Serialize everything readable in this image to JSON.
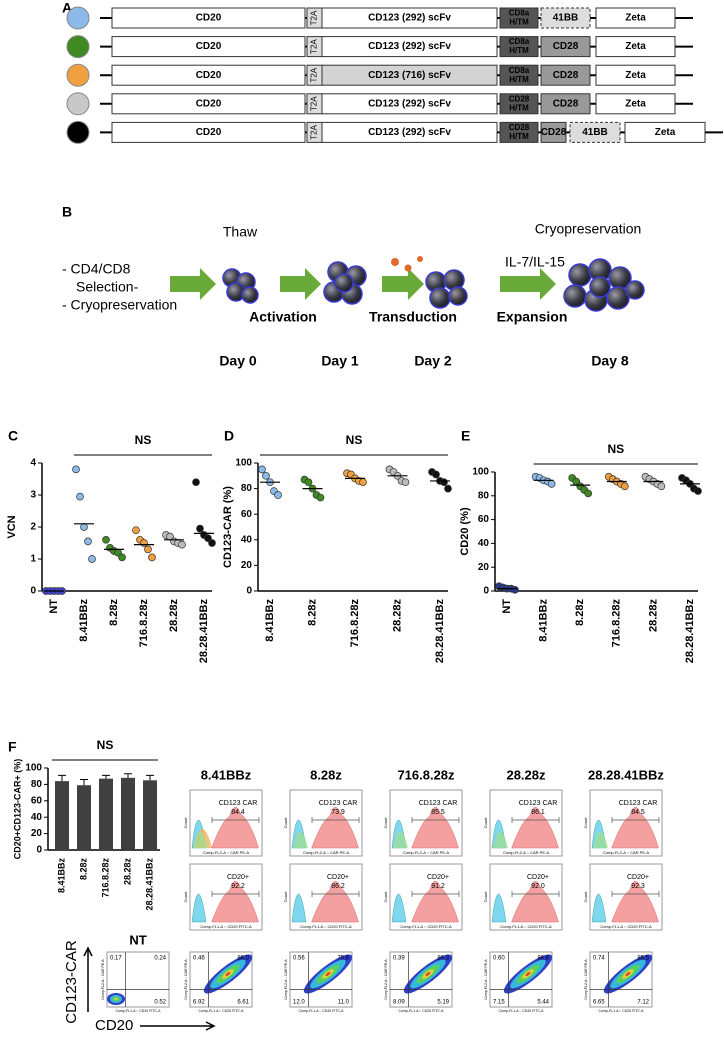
{
  "panel_a": {
    "label": "A",
    "rows": [
      {
        "color": "#8db9e8",
        "segments": [
          {
            "text": [
              "CD20"
            ],
            "fill": "#ffffff"
          },
          {
            "text": [
              "T2A"
            ],
            "fill": "#dddddd"
          },
          {
            "text": [
              "CD123 (292) scFv"
            ],
            "fill": "#ffffff"
          },
          {
            "text": [
              "CD8a",
              "H/TM"
            ],
            "fill": "#555555"
          },
          {
            "text": [
              "41BB"
            ],
            "fill": "#dddddd",
            "dashed": true
          },
          {
            "text": [
              "Zeta"
            ],
            "fill": "#ffffff"
          }
        ]
      },
      {
        "color": "#3f8a22",
        "segments": [
          {
            "text": [
              "CD20"
            ],
            "fill": "#ffffff"
          },
          {
            "text": [
              "T2A"
            ],
            "fill": "#dddddd"
          },
          {
            "text": [
              "CD123 (292) scFv"
            ],
            "fill": "#ffffff"
          },
          {
            "text": [
              "CD8a",
              "H/TM"
            ],
            "fill": "#555555"
          },
          {
            "text": [
              "CD28"
            ],
            "fill": "#999999"
          },
          {
            "text": [
              "Zeta"
            ],
            "fill": "#ffffff"
          }
        ]
      },
      {
        "color": "#f0a040",
        "segments": [
          {
            "text": [
              "CD20"
            ],
            "fill": "#ffffff"
          },
          {
            "text": [
              "T2A"
            ],
            "fill": "#dddddd"
          },
          {
            "text": [
              "CD123 (716) scFv"
            ],
            "fill": "#d3d3d3"
          },
          {
            "text": [
              "CD8a",
              "H/TM"
            ],
            "fill": "#555555"
          },
          {
            "text": [
              "CD28"
            ],
            "fill": "#999999"
          },
          {
            "text": [
              "Zeta"
            ],
            "fill": "#ffffff"
          }
        ]
      },
      {
        "color": "#c8c8c8",
        "segments": [
          {
            "text": [
              "CD20"
            ],
            "fill": "#ffffff"
          },
          {
            "text": [
              "T2A"
            ],
            "fill": "#dddddd"
          },
          {
            "text": [
              "CD123 (292) scFv"
            ],
            "fill": "#ffffff"
          },
          {
            "text": [
              "CD28",
              "H/TM"
            ],
            "fill": "#555555"
          },
          {
            "text": [
              "CD28"
            ],
            "fill": "#999999"
          },
          {
            "text": [
              "Zeta"
            ],
            "fill": "#ffffff"
          }
        ]
      },
      {
        "color": "#000000",
        "segments": [
          {
            "text": [
              "CD20"
            ],
            "fill": "#ffffff"
          },
          {
            "text": [
              "T2A"
            ],
            "fill": "#dddddd"
          },
          {
            "text": [
              "CD123 (292) scFv"
            ],
            "fill": "#ffffff"
          },
          {
            "text": [
              "CD28",
              "H/TM"
            ],
            "fill": "#555555"
          },
          {
            "text": [
              "CD28"
            ],
            "fill": "#999999"
          },
          {
            "text": [
              "41BB"
            ],
            "fill": "#dddddd",
            "dashed": true
          },
          {
            "text": [
              "Zeta"
            ],
            "fill": "#ffffff"
          }
        ]
      }
    ]
  },
  "panel_b": {
    "label": "B",
    "start": [
      "- CD4/CD8",
      "Selection-",
      "- Cryopreservation"
    ],
    "thaw": "Thaw",
    "activation": "Activation",
    "transduction": "Transduction",
    "cytokines": "IL-7/IL-15",
    "expansion": "Expansion",
    "cryo": "Cryopreservation",
    "days": [
      "Day 0",
      "Day 1",
      "Day 2",
      "Day 8"
    ]
  },
  "chart_data": [
    {
      "type": "dot",
      "label": "C",
      "y_label": "VCN",
      "annotation": "NS",
      "categories": [
        "NT",
        "8.41BBz",
        "8.28z",
        "716.8.28z",
        "28.28z",
        "28.28.41BBz"
      ],
      "colors": [
        "#4444dd",
        "#8db9e8",
        "#3f8a22",
        "#f0a040",
        "#bbbbbb",
        "#111111"
      ],
      "values": [
        [
          0,
          0,
          0,
          0,
          0
        ],
        [
          3.8,
          2.95,
          2.0,
          1.55,
          1.0
        ],
        [
          1.6,
          1.35,
          1.25,
          1.2,
          1.05
        ],
        [
          1.9,
          1.6,
          1.5,
          1.3,
          1.05
        ],
        [
          1.75,
          1.7,
          1.55,
          1.5,
          1.45
        ],
        [
          3.4,
          1.95,
          1.75,
          1.65,
          1.5
        ]
      ],
      "means": [
        0,
        2.1,
        1.3,
        1.45,
        1.6,
        1.8
      ],
      "ylim": [
        0,
        4
      ],
      "yticks": [
        0,
        1,
        2,
        3,
        4
      ]
    },
    {
      "type": "dot",
      "label": "D",
      "y_label": "CD123-CAR (%)",
      "annotation": "NS",
      "categories": [
        "8.41BBz",
        "8.28z",
        "716.8.28z",
        "28.28z",
        "28.28.41BBz"
      ],
      "colors": [
        "#8db9e8",
        "#3f8a22",
        "#f0a040",
        "#bbbbbb",
        "#111111"
      ],
      "values": [
        [
          95,
          90,
          85,
          78,
          75
        ],
        [
          87,
          85,
          80,
          75,
          73
        ],
        [
          92,
          91,
          88,
          86,
          85
        ],
        [
          95,
          93,
          90,
          86,
          85
        ],
        [
          93,
          91,
          86,
          85,
          80
        ]
      ],
      "means": [
        85,
        80,
        88,
        90,
        86
      ],
      "ylim": [
        0,
        100
      ],
      "yticks": [
        0,
        20,
        40,
        60,
        80,
        100
      ]
    },
    {
      "type": "dot",
      "label": "E",
      "y_label": "CD20 (%)",
      "annotation": "NS",
      "categories": [
        "NT",
        "8.41BBz",
        "8.28z",
        "716.8.28z",
        "28.28z",
        "28.28.41BBz"
      ],
      "colors": [
        "#2a3a8a",
        "#8db9e8",
        "#3f8a22",
        "#f0a040",
        "#bbbbbb",
        "#111111"
      ],
      "values": [
        [
          4,
          3,
          2,
          2,
          1
        ],
        [
          96,
          95,
          93,
          92,
          90
        ],
        [
          95,
          92,
          88,
          85,
          82
        ],
        [
          96,
          94,
          92,
          90,
          88
        ],
        [
          96,
          94,
          92,
          90,
          88
        ],
        [
          95,
          93,
          90,
          86,
          84
        ]
      ],
      "means": [
        2,
        93,
        89,
        92,
        92,
        90
      ],
      "ylim": [
        0,
        100
      ],
      "yticks": [
        0,
        20,
        40,
        60,
        80,
        100
      ]
    },
    {
      "type": "bar",
      "label": "F",
      "y_label": "CD20+CD123-CAR+ (%)",
      "annotation": "NS",
      "categories": [
        "8.41BBz",
        "8.28z",
        "716.8.28z",
        "28.28z",
        "28.28.41BBz"
      ],
      "values": [
        84,
        79,
        87,
        88,
        85
      ],
      "errors": [
        7,
        7,
        4,
        5,
        6
      ],
      "color": "#404040",
      "ylim": [
        0,
        100
      ],
      "yticks": [
        0,
        20,
        40,
        60,
        80,
        100
      ]
    }
  ],
  "flow": {
    "constructs": [
      "8.41BBz",
      "8.28z",
      "716.8.28z",
      "28.28z",
      "28.28.41BBz"
    ],
    "car_gate": "CD123 CAR",
    "car_values": [
      "84.4",
      "73.9",
      "85.5",
      "86.1",
      "84.5"
    ],
    "cd20_gate": "CD20+",
    "cd20_values": [
      "92.2",
      "86.2",
      "91.2",
      "92.0",
      "92.3"
    ],
    "count_label": "Count",
    "car_axis": "Comp-FL2-A :: CAR PE-A",
    "cd20_axis": "Comp-FL1-A :: CD20 FITC-A",
    "nt_label": "NT",
    "y_arrow_label": "CD123-CAR",
    "x_arrow_label": "CD20",
    "quadrants": [
      {
        "ul": "0.17",
        "ur": "0.24",
        "lr": "0.52"
      },
      {
        "ul": "0.46",
        "ur": "86.0",
        "ll": "6.92",
        "lr": "6.61"
      },
      {
        "ul": "0.56",
        "ur": "75.6",
        "ll": "12.0",
        "lr": "11.0"
      },
      {
        "ul": "0.39",
        "ur": "86.3",
        "ll": "8.09",
        "lr": "5.19"
      },
      {
        "ul": "0.60",
        "ur": "86.8",
        "ll": "7.15",
        "lr": "5.44"
      },
      {
        "ul": "0.74",
        "ur": "85.5",
        "ll": "6.65",
        "lr": "7.12"
      }
    ]
  }
}
